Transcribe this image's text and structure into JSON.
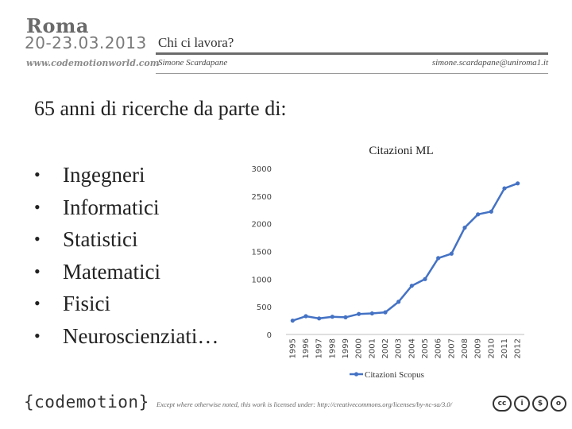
{
  "brand": {
    "name": "Roma",
    "dates": "20-23.03.2013",
    "website": "www.codemotionworld.com"
  },
  "header": {
    "title": "Chi ci lavora?",
    "author": "Simone Scardapane",
    "email": "simone.scardapane@uniroma1.it"
  },
  "main": {
    "heading": "65 anni di ricerche da parte di:",
    "bullets": [
      "Ingegneri",
      "Informatici",
      "Statistici",
      "Matematici",
      "Fisici",
      "Neuroscienziati…"
    ]
  },
  "chart_data": {
    "type": "line",
    "title": "Citazioni ML",
    "categories": [
      "1995",
      "1996",
      "1997",
      "1998",
      "1999",
      "2000",
      "2001",
      "2002",
      "2003",
      "2004",
      "2005",
      "2006",
      "2007",
      "2008",
      "2009",
      "2010",
      "2011",
      "2012"
    ],
    "series": [
      {
        "name": "Citazioni Scopus",
        "values": [
          250,
          330,
          290,
          320,
          310,
          370,
          380,
          400,
          590,
          880,
          1000,
          1380,
          1460,
          1930,
          2170,
          2220,
          2640,
          2730
        ]
      }
    ],
    "yticks": [
      "0",
      "500",
      "1000",
      "1500",
      "2000",
      "2500",
      "3000"
    ],
    "ylim": [
      0,
      3000
    ],
    "color": "#4472c4"
  },
  "footer": {
    "logo": "{codemotion}",
    "license": "Except where otherwise noted, this work is licensed under: http://creativecommons.org/licenses/by-nc-sa/3.0/",
    "cc_icons": [
      "cc",
      "i",
      "$",
      "o"
    ]
  }
}
